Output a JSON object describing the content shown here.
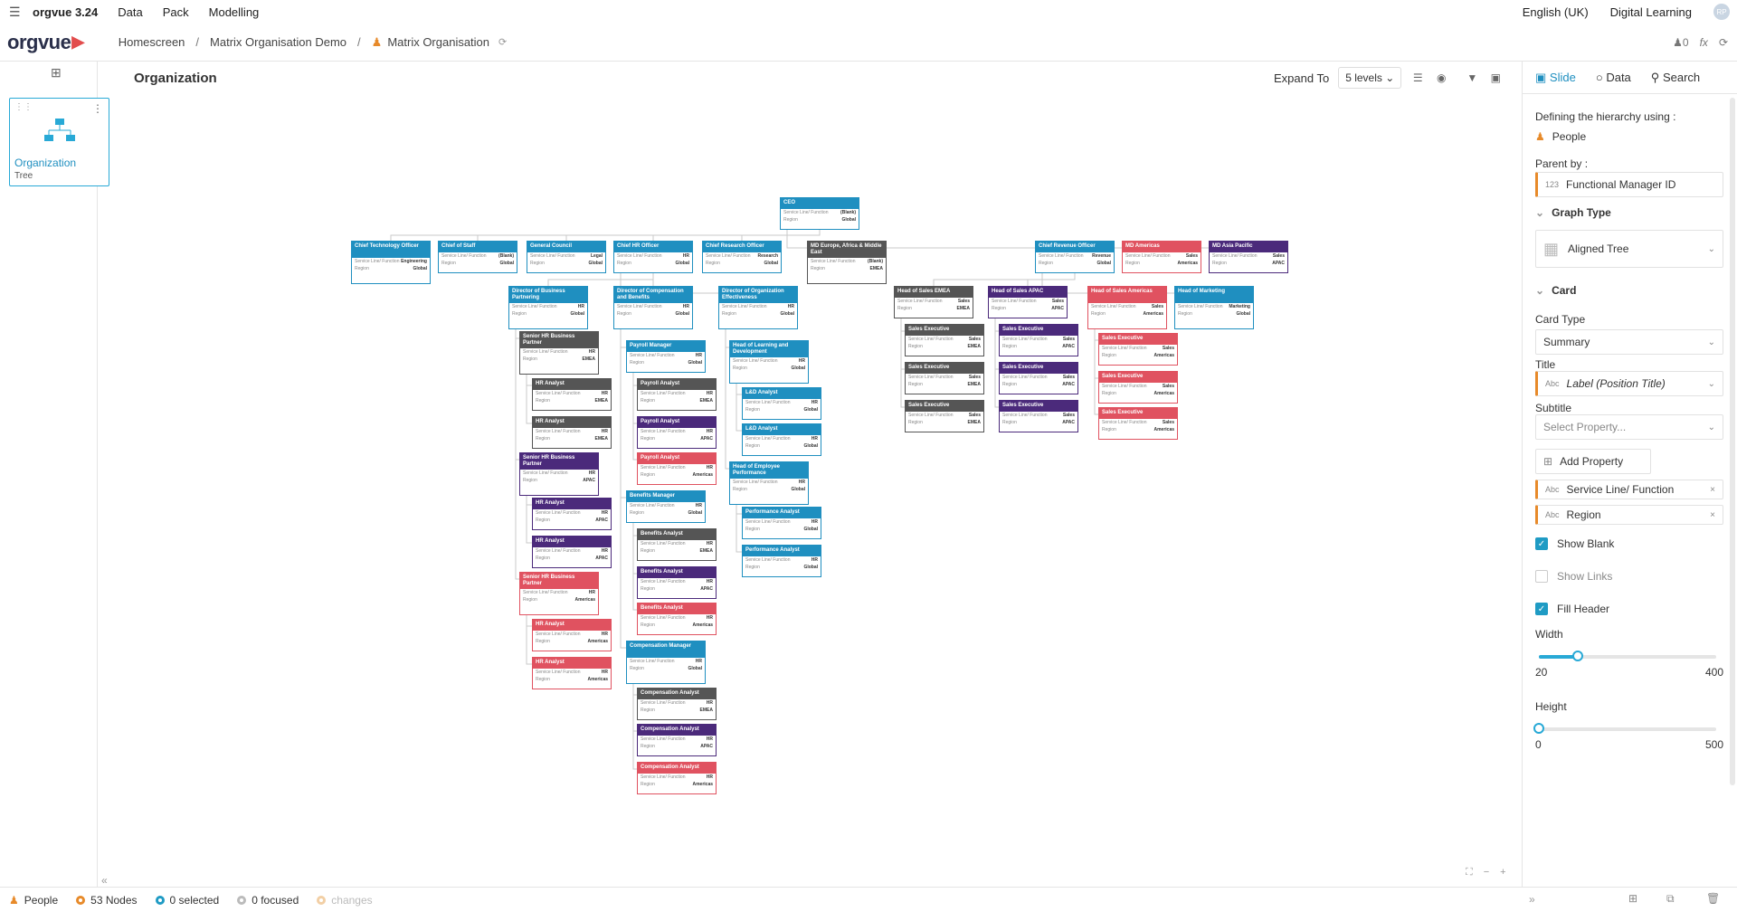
{
  "app": {
    "menu_icon": "hamburger-icon",
    "name": "orgvue 3.24",
    "menus": [
      "Data",
      "Pack",
      "Modelling"
    ],
    "language": "English (UK)",
    "learning": "Digital Learning",
    "avatar": "RP"
  },
  "logo": "orgvue",
  "breadcrumb": [
    "Homescreen",
    "Matrix Organisation Demo",
    "Matrix Organisation"
  ],
  "counter": "0",
  "slide": {
    "label": "Organization",
    "sub": "Tree"
  },
  "canvas": {
    "title": "Organization",
    "expand_label": "Expand To",
    "levels": "5 levels"
  },
  "panel": {
    "tabs": [
      "Slide",
      "Data",
      "Search"
    ],
    "hierarchy_label": "Defining the hierarchy using :",
    "hierarchy_value": "People",
    "parent_label": "Parent by :",
    "parent_value": "Functional Manager ID",
    "parent_type": "123",
    "graph_section": "Graph Type",
    "graph_value": "Aligned Tree",
    "card_section": "Card",
    "card_type_label": "Card Type",
    "card_type_value": "Summary",
    "title_label": "Title",
    "title_value": "Label (Position Title)",
    "subtitle_label": "Subtitle",
    "subtitle_placeholder": "Select Property...",
    "add_property": "Add Property",
    "properties": [
      "Service Line/ Function",
      "Region"
    ],
    "abc": "Abc",
    "show_blank": "Show Blank",
    "show_links": "Show Links",
    "fill_header": "Fill Header",
    "width_label": "Width",
    "width_min": "20",
    "width_max": "400",
    "width_value": 0.22,
    "height_label": "Height",
    "height_min": "0",
    "height_max": "500",
    "height_value": 0.0
  },
  "status": {
    "entity": "People",
    "nodes": "53 Nodes",
    "selected": "0 selected",
    "focused": "0 focused",
    "changes": "changes"
  },
  "card_labels": {
    "service": "Service Line/ Function",
    "region": "Region"
  },
  "colors": {
    "blue": "#1f8fc0",
    "dark": "#555555",
    "red": "#e05260",
    "purple": "#4b2a7b",
    "accent": "#28a9d6"
  },
  "nodes": [
    {
      "id": "ceo",
      "t": "CEO",
      "s": "(Blank)",
      "r": "Global",
      "c": "blue"
    },
    {
      "id": "cto",
      "t": "Chief Technology Officer",
      "s": "Engineering",
      "r": "Global",
      "c": "blue"
    },
    {
      "id": "cos",
      "t": "Chief of Staff",
      "s": "(Blank)",
      "r": "Global",
      "c": "blue"
    },
    {
      "id": "gc",
      "t": "General Council",
      "s": "Legal",
      "r": "Global",
      "c": "blue"
    },
    {
      "id": "chro",
      "t": "Chief HR Officer",
      "s": "HR",
      "r": "Global",
      "c": "blue"
    },
    {
      "id": "cro",
      "t": "Chief Research Officer",
      "s": "Research",
      "r": "Global",
      "c": "blue"
    },
    {
      "id": "mdeu",
      "t": "MD Europe, Africa & Middle East",
      "s": "(Blank)",
      "r": "EMEA",
      "c": "dark"
    },
    {
      "id": "crevo",
      "t": "Chief Revenue Officer",
      "s": "Revenue",
      "r": "Global",
      "c": "blue"
    },
    {
      "id": "mdam",
      "t": "MD Americas",
      "s": "Sales",
      "r": "Americas",
      "c": "red"
    },
    {
      "id": "mdap",
      "t": "MD Asia Pacific",
      "s": "Sales",
      "r": "APAC",
      "c": "purple"
    },
    {
      "id": "dbp",
      "t": "Director of Business Partnering",
      "s": "HR",
      "r": "Global",
      "c": "blue"
    },
    {
      "id": "dcb",
      "t": "Director of Compensation and Benefits",
      "s": "HR",
      "r": "Global",
      "c": "blue"
    },
    {
      "id": "doe",
      "t": "Director of Organization Effectiveness",
      "s": "HR",
      "r": "Global",
      "c": "blue"
    },
    {
      "id": "hse",
      "t": "Head of Sales EMEA",
      "s": "Sales",
      "r": "EMEA",
      "c": "dark"
    },
    {
      "id": "hsa",
      "t": "Head of Sales APAC",
      "s": "Sales",
      "r": "APAC",
      "c": "purple"
    },
    {
      "id": "hsam",
      "t": "Head of Sales Americas",
      "s": "Sales",
      "r": "Americas",
      "c": "red"
    },
    {
      "id": "hm",
      "t": "Head of Marketing",
      "s": "Marketing",
      "r": "Global",
      "c": "blue"
    },
    {
      "id": "shr1",
      "t": "Senior HR Business Partner",
      "s": "HR",
      "r": "EMEA",
      "c": "dark"
    },
    {
      "id": "hra1",
      "t": "HR Analyst",
      "s": "HR",
      "r": "EMEA",
      "c": "dark"
    },
    {
      "id": "hra2",
      "t": "HR Analyst",
      "s": "HR",
      "r": "EMEA",
      "c": "dark"
    },
    {
      "id": "shr2",
      "t": "Senior HR Business Partner",
      "s": "HR",
      "r": "APAC",
      "c": "purple"
    },
    {
      "id": "hra3",
      "t": "HR Analyst",
      "s": "HR",
      "r": "APAC",
      "c": "purple"
    },
    {
      "id": "hra4",
      "t": "HR Analyst",
      "s": "HR",
      "r": "APAC",
      "c": "purple"
    },
    {
      "id": "shr3",
      "t": "Senior HR Business Partner",
      "s": "HR",
      "r": "Americas",
      "c": "red"
    },
    {
      "id": "hra5",
      "t": "HR Analyst",
      "s": "HR",
      "r": "Americas",
      "c": "red"
    },
    {
      "id": "hra6",
      "t": "HR Analyst",
      "s": "HR",
      "r": "Americas",
      "c": "red"
    },
    {
      "id": "pm",
      "t": "Payroll Manager",
      "s": "HR",
      "r": "Global",
      "c": "blue"
    },
    {
      "id": "pa1",
      "t": "Payroll Analyst",
      "s": "HR",
      "r": "EMEA",
      "c": "dark"
    },
    {
      "id": "pa2",
      "t": "Payroll Analyst",
      "s": "HR",
      "r": "APAC",
      "c": "purple"
    },
    {
      "id": "pa3",
      "t": "Payroll Analyst",
      "s": "HR",
      "r": "Americas",
      "c": "red"
    },
    {
      "id": "bm",
      "t": "Benefits Manager",
      "s": "HR",
      "r": "Global",
      "c": "blue"
    },
    {
      "id": "ba1",
      "t": "Benefits Analyst",
      "s": "HR",
      "r": "EMEA",
      "c": "dark"
    },
    {
      "id": "ba2",
      "t": "Benefits Analyst",
      "s": "HR",
      "r": "APAC",
      "c": "purple"
    },
    {
      "id": "ba3",
      "t": "Benefits Analyst",
      "s": "HR",
      "r": "Americas",
      "c": "red"
    },
    {
      "id": "cm",
      "t": "Compensation Manager",
      "s": "HR",
      "r": "Global",
      "c": "blue"
    },
    {
      "id": "ca1",
      "t": "Compensation Analyst",
      "s": "HR",
      "r": "EMEA",
      "c": "dark"
    },
    {
      "id": "ca2",
      "t": "Compensation Analyst",
      "s": "HR",
      "r": "APAC",
      "c": "purple"
    },
    {
      "id": "ca3",
      "t": "Compensation Analyst",
      "s": "HR",
      "r": "Americas",
      "c": "red"
    },
    {
      "id": "hld",
      "t": "Head of Learning and Development",
      "s": "HR",
      "r": "Global",
      "c": "blue"
    },
    {
      "id": "lda1",
      "t": "L&D Analyst",
      "s": "HR",
      "r": "Global",
      "c": "blue"
    },
    {
      "id": "lda2",
      "t": "L&D Analyst",
      "s": "HR",
      "r": "Global",
      "c": "blue"
    },
    {
      "id": "hep",
      "t": "Head of Employee Performance",
      "s": "HR",
      "r": "Global",
      "c": "blue"
    },
    {
      "id": "pfa1",
      "t": "Performance Analyst",
      "s": "HR",
      "r": "Global",
      "c": "blue"
    },
    {
      "id": "pfa2",
      "t": "Performance Analyst",
      "s": "HR",
      "r": "Global",
      "c": "blue"
    },
    {
      "id": "se1",
      "t": "Sales Executive",
      "s": "Sales",
      "r": "EMEA",
      "c": "dark"
    },
    {
      "id": "se2",
      "t": "Sales Executive",
      "s": "Sales",
      "r": "EMEA",
      "c": "dark"
    },
    {
      "id": "se3",
      "t": "Sales Executive",
      "s": "Sales",
      "r": "EMEA",
      "c": "dark"
    },
    {
      "id": "se4",
      "t": "Sales Executive",
      "s": "Sales",
      "r": "APAC",
      "c": "purple"
    },
    {
      "id": "se5",
      "t": "Sales Executive",
      "s": "Sales",
      "r": "APAC",
      "c": "purple"
    },
    {
      "id": "se6",
      "t": "Sales Executive",
      "s": "Sales",
      "r": "APAC",
      "c": "purple"
    },
    {
      "id": "se7",
      "t": "Sales Executive",
      "s": "Sales",
      "r": "Americas",
      "c": "red"
    },
    {
      "id": "se8",
      "t": "Sales Executive",
      "s": "Sales",
      "r": "Americas",
      "c": "red"
    },
    {
      "id": "se9",
      "t": "Sales Executive",
      "s": "Sales",
      "r": "Americas",
      "c": "red"
    }
  ],
  "links": [
    [
      "ceo",
      "cto"
    ],
    [
      "ceo",
      "cos"
    ],
    [
      "ceo",
      "gc"
    ],
    [
      "ceo",
      "chro"
    ],
    [
      "ceo",
      "cro"
    ],
    [
      "ceo",
      "mdeu"
    ],
    [
      "ceo",
      "crevo"
    ],
    [
      "ceo",
      "mdam"
    ],
    [
      "ceo",
      "mdap"
    ],
    [
      "chro",
      "dbp"
    ],
    [
      "chro",
      "dcb"
    ],
    [
      "chro",
      "doe"
    ],
    [
      "crevo",
      "hse"
    ],
    [
      "crevo",
      "hsa"
    ],
    [
      "crevo",
      "hsam"
    ],
    [
      "crevo",
      "hm"
    ],
    [
      "dbp",
      "shr1"
    ],
    [
      "dbp",
      "shr2"
    ],
    [
      "dbp",
      "shr3"
    ],
    [
      "shr1",
      "hra1"
    ],
    [
      "shr1",
      "hra2"
    ],
    [
      "shr2",
      "hra3"
    ],
    [
      "shr2",
      "hra4"
    ],
    [
      "shr3",
      "hra5"
    ],
    [
      "shr3",
      "hra6"
    ],
    [
      "dcb",
      "pm"
    ],
    [
      "dcb",
      "bm"
    ],
    [
      "dcb",
      "cm"
    ],
    [
      "pm",
      "pa1"
    ],
    [
      "pm",
      "pa2"
    ],
    [
      "pm",
      "pa3"
    ],
    [
      "bm",
      "ba1"
    ],
    [
      "bm",
      "ba2"
    ],
    [
      "bm",
      "ba3"
    ],
    [
      "cm",
      "ca1"
    ],
    [
      "cm",
      "ca2"
    ],
    [
      "cm",
      "ca3"
    ],
    [
      "doe",
      "hld"
    ],
    [
      "doe",
      "hep"
    ],
    [
      "hld",
      "lda1"
    ],
    [
      "hld",
      "lda2"
    ],
    [
      "hep",
      "pfa1"
    ],
    [
      "hep",
      "pfa2"
    ],
    [
      "hse",
      "se1"
    ],
    [
      "hse",
      "se2"
    ],
    [
      "hse",
      "se3"
    ],
    [
      "hsa",
      "se4"
    ],
    [
      "hsa",
      "se5"
    ],
    [
      "hsa",
      "se6"
    ],
    [
      "hsam",
      "se7"
    ],
    [
      "hsam",
      "se8"
    ],
    [
      "hsam",
      "se9"
    ]
  ]
}
